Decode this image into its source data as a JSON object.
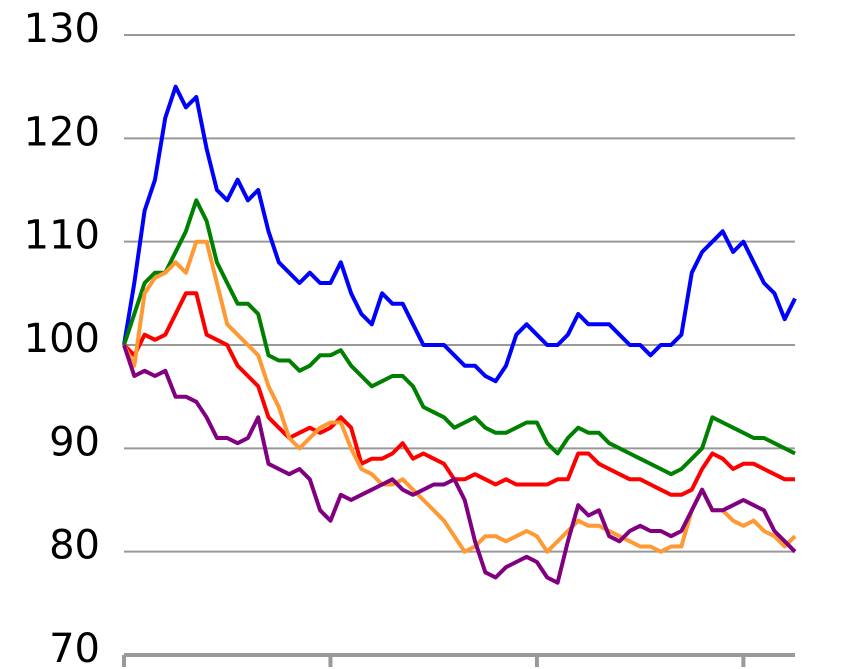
{
  "chart_data": {
    "type": "line",
    "x": [
      0,
      1,
      2,
      3,
      4,
      5,
      6,
      7,
      8,
      9,
      10,
      11,
      12,
      13,
      14,
      15,
      16,
      17,
      18,
      19,
      20,
      21,
      22,
      23,
      24,
      25,
      26,
      27,
      28,
      29,
      30,
      31,
      32,
      33,
      34,
      35,
      36,
      37,
      38,
      39,
      40,
      41,
      42,
      43,
      44,
      45,
      46,
      47,
      48,
      49,
      50,
      51,
      52,
      53,
      54,
      55,
      56,
      57,
      58,
      59,
      60,
      61,
      62,
      63,
      64,
      65
    ],
    "xlim": [
      0,
      65
    ],
    "xticks": [
      0,
      20,
      40,
      60
    ],
    "ylim": [
      70,
      130
    ],
    "yticks": [
      70,
      80,
      90,
      100,
      110,
      120,
      130
    ],
    "grid": true,
    "series": [
      {
        "color": "#0000ff",
        "values": [
          100,
          106,
          113,
          116,
          122,
          125,
          123,
          124,
          119,
          115,
          114,
          116,
          114,
          115,
          111,
          108,
          107,
          106,
          107,
          106,
          106,
          108,
          105,
          103,
          102,
          105,
          104,
          104,
          102,
          100,
          100,
          100,
          99,
          98,
          98,
          97,
          96.5,
          98,
          101,
          102,
          101,
          100,
          100,
          101,
          103,
          102,
          102,
          102,
          101,
          100,
          100,
          99,
          100,
          100,
          101,
          107,
          109,
          110,
          111,
          109,
          110,
          108,
          106,
          105,
          102.5,
          104.5
        ]
      },
      {
        "color": "#008000",
        "values": [
          100,
          103,
          106,
          107,
          107,
          109,
          111,
          114,
          112,
          108,
          106,
          104,
          104,
          103,
          99,
          98.5,
          98.5,
          97.5,
          98,
          99,
          99,
          99.5,
          98,
          97,
          96,
          96.5,
          97,
          97,
          96,
          94,
          93.5,
          93,
          92,
          92.5,
          93,
          92,
          91.5,
          91.5,
          92,
          92.5,
          92.5,
          90.5,
          89.5,
          91,
          92,
          91.5,
          91.5,
          90.5,
          90,
          89.5,
          89,
          88.5,
          88,
          87.5,
          88,
          89,
          90,
          93,
          92.5,
          92,
          91.5,
          91,
          91,
          90.5,
          90,
          89.5
        ]
      },
      {
        "color": "#ff0000",
        "values": [
          100,
          99,
          101,
          100.5,
          101,
          103,
          105,
          105,
          101,
          100.5,
          100,
          98,
          97,
          96,
          93,
          92,
          91,
          91.5,
          92,
          91.5,
          92,
          93,
          92,
          88.5,
          89,
          89,
          89.5,
          90.5,
          89,
          89.5,
          89,
          88.5,
          87,
          87,
          87.5,
          87,
          86.5,
          87,
          86.5,
          86.5,
          86.5,
          86.5,
          87,
          87,
          89.5,
          89.5,
          88.5,
          88,
          87.5,
          87,
          87,
          86.5,
          86,
          85.5,
          85.5,
          86,
          88,
          89.5,
          89,
          88,
          88.5,
          88.5,
          88,
          87.5,
          87,
          87
        ]
      },
      {
        "color": "#ff9933",
        "values": [
          100,
          98,
          105,
          106.5,
          107,
          108,
          107,
          110,
          110,
          106,
          102,
          101,
          100,
          99,
          96,
          94,
          91,
          90,
          91,
          92,
          92.5,
          92.5,
          90,
          88,
          87.5,
          86.5,
          86.5,
          87,
          86,
          85,
          84,
          83,
          81.5,
          80,
          80.5,
          81.5,
          81.5,
          81,
          81.5,
          82,
          81.5,
          80,
          81,
          82,
          83,
          82.5,
          82.5,
          82,
          81.5,
          81,
          80.5,
          80.5,
          80,
          80.5,
          80.5,
          84,
          86,
          84,
          84,
          83,
          82.5,
          83,
          82,
          81.5,
          80.5,
          81.5
        ]
      },
      {
        "color": "#800080",
        "values": [
          100,
          97,
          97.5,
          97,
          97.5,
          95,
          95,
          94.5,
          93,
          91,
          91,
          90.5,
          91,
          93,
          88.5,
          88,
          87.5,
          88,
          87,
          84,
          83,
          85.5,
          85,
          85.5,
          86,
          86.5,
          87,
          86,
          85.5,
          86,
          86.5,
          86.5,
          87,
          85,
          81,
          78,
          77.5,
          78.5,
          79,
          79.5,
          79,
          77.5,
          77,
          81,
          84.5,
          83.5,
          84,
          81.5,
          81,
          82,
          82.5,
          82,
          82,
          81.5,
          82,
          84,
          86,
          84,
          84,
          84.5,
          85,
          84.5,
          84,
          82,
          81,
          80
        ]
      }
    ]
  }
}
